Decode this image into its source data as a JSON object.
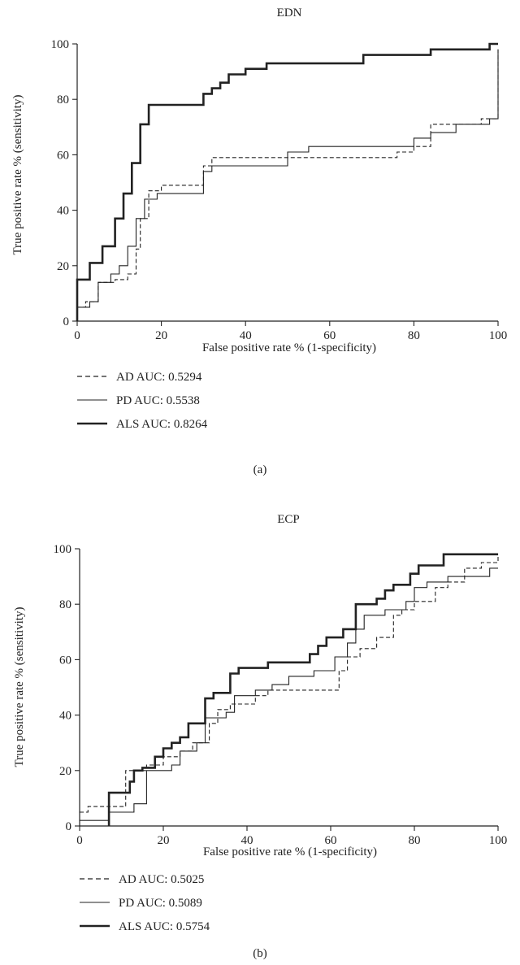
{
  "chart_data": [
    {
      "type": "line",
      "title": "EDN",
      "xlabel": "False positive rate % (1-specificity)",
      "ylabel": "True positive rate % (sensitivity)",
      "xlim": [
        0,
        100
      ],
      "ylim": [
        0,
        100
      ],
      "xticks": [
        0,
        20,
        40,
        60,
        80,
        100
      ],
      "yticks": [
        0,
        20,
        40,
        60,
        80,
        100
      ],
      "grid": false,
      "legend_position": "bottom-left",
      "panel_label": "(a)",
      "series": [
        {
          "name": "AD AUC: 0.5294",
          "style": "dashed",
          "points": [
            [
              0,
              0
            ],
            [
              0,
              5
            ],
            [
              2,
              5
            ],
            [
              2,
              7
            ],
            [
              5,
              7
            ],
            [
              5,
              14
            ],
            [
              9,
              14
            ],
            [
              9,
              15
            ],
            [
              12,
              15
            ],
            [
              12,
              17
            ],
            [
              14,
              17
            ],
            [
              14,
              26
            ],
            [
              15,
              26
            ],
            [
              15,
              37
            ],
            [
              17,
              37
            ],
            [
              17,
              47
            ],
            [
              20,
              47
            ],
            [
              20,
              49
            ],
            [
              30,
              49
            ],
            [
              30,
              56
            ],
            [
              32,
              56
            ],
            [
              32,
              59
            ],
            [
              60,
              59
            ],
            [
              60,
              59
            ],
            [
              76,
              59
            ],
            [
              76,
              61
            ],
            [
              80,
              61
            ],
            [
              80,
              63
            ],
            [
              84,
              63
            ],
            [
              84,
              71
            ],
            [
              96,
              71
            ],
            [
              96,
              73
            ],
            [
              100,
              73
            ],
            [
              100,
              98
            ]
          ]
        },
        {
          "name": "PD AUC: 0.5538",
          "style": "solid",
          "points": [
            [
              0,
              0
            ],
            [
              0,
              5
            ],
            [
              3,
              5
            ],
            [
              3,
              7
            ],
            [
              5,
              7
            ],
            [
              5,
              14
            ],
            [
              8,
              14
            ],
            [
              8,
              17
            ],
            [
              10,
              17
            ],
            [
              10,
              20
            ],
            [
              12,
              20
            ],
            [
              12,
              27
            ],
            [
              14,
              27
            ],
            [
              14,
              37
            ],
            [
              16,
              37
            ],
            [
              16,
              44
            ],
            [
              19,
              44
            ],
            [
              19,
              46
            ],
            [
              30,
              46
            ],
            [
              30,
              54
            ],
            [
              32,
              54
            ],
            [
              32,
              56
            ],
            [
              50,
              56
            ],
            [
              50,
              61
            ],
            [
              55,
              61
            ],
            [
              55,
              63
            ],
            [
              80,
              63
            ],
            [
              80,
              66
            ],
            [
              84,
              66
            ],
            [
              84,
              68
            ],
            [
              90,
              68
            ],
            [
              90,
              71
            ],
            [
              98,
              71
            ],
            [
              98,
              73
            ],
            [
              100,
              73
            ],
            [
              100,
              98
            ]
          ]
        },
        {
          "name": "ALS AUC: 0.8264",
          "style": "bold",
          "points": [
            [
              0,
              0
            ],
            [
              0,
              15
            ],
            [
              3,
              15
            ],
            [
              3,
              21
            ],
            [
              6,
              21
            ],
            [
              6,
              27
            ],
            [
              9,
              27
            ],
            [
              9,
              37
            ],
            [
              11,
              37
            ],
            [
              11,
              46
            ],
            [
              13,
              46
            ],
            [
              13,
              57
            ],
            [
              15,
              57
            ],
            [
              15,
              71
            ],
            [
              17,
              71
            ],
            [
              17,
              78
            ],
            [
              30,
              78
            ],
            [
              30,
              82
            ],
            [
              32,
              82
            ],
            [
              32,
              84
            ],
            [
              34,
              84
            ],
            [
              34,
              86
            ],
            [
              36,
              86
            ],
            [
              36,
              89
            ],
            [
              40,
              89
            ],
            [
              40,
              91
            ],
            [
              45,
              91
            ],
            [
              45,
              93
            ],
            [
              68,
              93
            ],
            [
              68,
              96
            ],
            [
              84,
              96
            ],
            [
              84,
              98
            ],
            [
              98,
              98
            ],
            [
              98,
              100
            ],
            [
              100,
              100
            ]
          ]
        }
      ]
    },
    {
      "type": "line",
      "title": "ECP",
      "xlabel": "False positive rate % (1-specificity)",
      "ylabel": "True positive rate % (sensitivity)",
      "xlim": [
        0,
        100
      ],
      "ylim": [
        0,
        100
      ],
      "xticks": [
        0,
        20,
        40,
        60,
        80,
        100
      ],
      "yticks": [
        0,
        20,
        40,
        60,
        80,
        100
      ],
      "grid": false,
      "legend_position": "bottom-left",
      "panel_label": "(b)",
      "series": [
        {
          "name": "AD AUC: 0.5025",
          "style": "dashed",
          "points": [
            [
              0,
              5
            ],
            [
              2,
              5
            ],
            [
              2,
              7
            ],
            [
              11,
              7
            ],
            [
              11,
              20
            ],
            [
              16,
              20
            ],
            [
              16,
              22
            ],
            [
              20,
              22
            ],
            [
              20,
              25
            ],
            [
              24,
              25
            ],
            [
              24,
              27
            ],
            [
              27,
              27
            ],
            [
              27,
              30
            ],
            [
              31,
              30
            ],
            [
              31,
              37
            ],
            [
              33,
              37
            ],
            [
              33,
              42
            ],
            [
              36,
              42
            ],
            [
              36,
              44
            ],
            [
              42,
              44
            ],
            [
              42,
              47
            ],
            [
              45,
              47
            ],
            [
              45,
              49
            ],
            [
              62,
              49
            ],
            [
              62,
              56
            ],
            [
              64,
              56
            ],
            [
              64,
              61
            ],
            [
              67,
              61
            ],
            [
              67,
              64
            ],
            [
              71,
              64
            ],
            [
              71,
              68
            ],
            [
              75,
              68
            ],
            [
              75,
              76
            ],
            [
              77,
              76
            ],
            [
              77,
              78
            ],
            [
              80,
              78
            ],
            [
              80,
              81
            ],
            [
              85,
              81
            ],
            [
              85,
              86
            ],
            [
              88,
              86
            ],
            [
              88,
              88
            ],
            [
              92,
              88
            ],
            [
              92,
              93
            ],
            [
              96,
              93
            ],
            [
              96,
              95
            ],
            [
              100,
              95
            ],
            [
              100,
              98
            ]
          ]
        },
        {
          "name": "PD AUC: 0.5089",
          "style": "solid",
          "points": [
            [
              0,
              2
            ],
            [
              7,
              2
            ],
            [
              7,
              5
            ],
            [
              13,
              5
            ],
            [
              13,
              8
            ],
            [
              16,
              8
            ],
            [
              16,
              20
            ],
            [
              22,
              20
            ],
            [
              22,
              22
            ],
            [
              24,
              22
            ],
            [
              24,
              27
            ],
            [
              28,
              27
            ],
            [
              28,
              30
            ],
            [
              30,
              30
            ],
            [
              30,
              39
            ],
            [
              35,
              39
            ],
            [
              35,
              41
            ],
            [
              37,
              41
            ],
            [
              37,
              47
            ],
            [
              42,
              47
            ],
            [
              42,
              49
            ],
            [
              46,
              49
            ],
            [
              46,
              51
            ],
            [
              50,
              51
            ],
            [
              50,
              54
            ],
            [
              56,
              54
            ],
            [
              56,
              56
            ],
            [
              61,
              56
            ],
            [
              61,
              61
            ],
            [
              64,
              61
            ],
            [
              64,
              66
            ],
            [
              66,
              66
            ],
            [
              66,
              71
            ],
            [
              68,
              71
            ],
            [
              68,
              76
            ],
            [
              73,
              76
            ],
            [
              73,
              78
            ],
            [
              78,
              78
            ],
            [
              78,
              81
            ],
            [
              80,
              81
            ],
            [
              80,
              86
            ],
            [
              83,
              86
            ],
            [
              83,
              88
            ],
            [
              88,
              88
            ],
            [
              88,
              90
            ],
            [
              98,
              90
            ],
            [
              98,
              93
            ],
            [
              100,
              93
            ]
          ]
        },
        {
          "name": "ALS AUC: 0.5754",
          "style": "bold",
          "points": [
            [
              7,
              0
            ],
            [
              7,
              12
            ],
            [
              12,
              12
            ],
            [
              12,
              16
            ],
            [
              13,
              16
            ],
            [
              13,
              20
            ],
            [
              15,
              20
            ],
            [
              15,
              21
            ],
            [
              18,
              21
            ],
            [
              18,
              25
            ],
            [
              20,
              25
            ],
            [
              20,
              28
            ],
            [
              22,
              28
            ],
            [
              22,
              30
            ],
            [
              24,
              30
            ],
            [
              24,
              32
            ],
            [
              26,
              32
            ],
            [
              26,
              37
            ],
            [
              30,
              37
            ],
            [
              30,
              46
            ],
            [
              32,
              46
            ],
            [
              32,
              48
            ],
            [
              36,
              48
            ],
            [
              36,
              55
            ],
            [
              38,
              55
            ],
            [
              38,
              57
            ],
            [
              45,
              57
            ],
            [
              45,
              59
            ],
            [
              55,
              59
            ],
            [
              55,
              62
            ],
            [
              57,
              62
            ],
            [
              57,
              65
            ],
            [
              59,
              65
            ],
            [
              59,
              68
            ],
            [
              63,
              68
            ],
            [
              63,
              71
            ],
            [
              66,
              71
            ],
            [
              66,
              80
            ],
            [
              71,
              80
            ],
            [
              71,
              82
            ],
            [
              73,
              82
            ],
            [
              73,
              85
            ],
            [
              75,
              85
            ],
            [
              75,
              87
            ],
            [
              79,
              87
            ],
            [
              79,
              91
            ],
            [
              81,
              91
            ],
            [
              81,
              94
            ],
            [
              87,
              94
            ],
            [
              87,
              98
            ],
            [
              100,
              98
            ]
          ]
        }
      ]
    }
  ]
}
